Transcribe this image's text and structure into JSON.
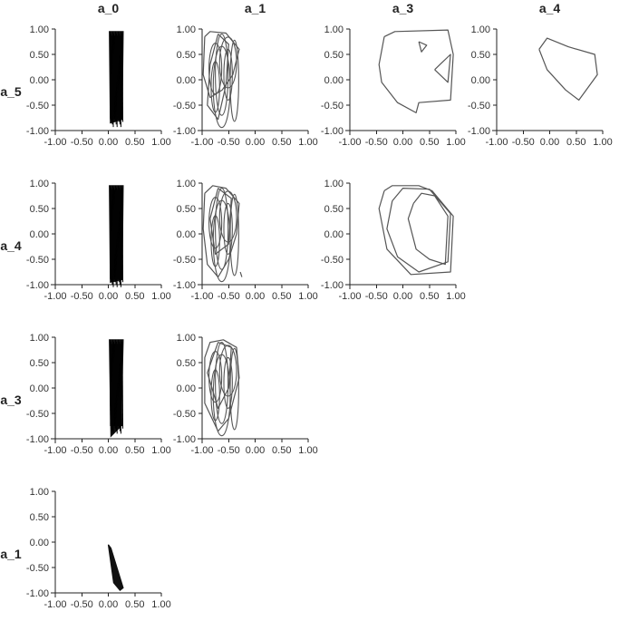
{
  "chart_data": {
    "type": "scatter",
    "col_headers": [
      "a_0",
      "a_1",
      "a_3",
      "a_4"
    ],
    "row_headers": [
      "a_5",
      "a_4",
      "a_3",
      "a_1"
    ],
    "xlim": [
      -1.0,
      1.0
    ],
    "ylim": [
      -1.0,
      1.0
    ],
    "x_ticks": [
      "-1.00",
      "-0.50",
      "0.00",
      "0.50",
      "1.00"
    ],
    "y_ticks": [
      "1.00",
      "0.50",
      "0.00",
      "-0.50",
      "-1.00"
    ],
    "grid": false,
    "line_color": "#555555",
    "dense_color": "#111111",
    "panels": [
      {
        "row": 0,
        "col": 0,
        "x_label": "a_0",
        "y_label": "a_5",
        "style": "dense",
        "series": [
          [
            [
              0.02,
              0.95
            ],
            [
              0.28,
              0.95
            ],
            [
              0.26,
              -0.78
            ],
            [
              0.04,
              -0.85
            ],
            [
              0.02,
              0.95
            ]
          ]
        ]
      },
      {
        "row": 0,
        "col": 1,
        "x_label": "a_1",
        "y_label": "a_5",
        "style": "tangle",
        "series": [
          [
            [
              -0.95,
              0.85
            ],
            [
              -0.85,
              0.95
            ],
            [
              -0.55,
              0.92
            ],
            [
              -0.3,
              0.6
            ],
            [
              -0.42,
              0.1
            ],
            [
              -0.62,
              -0.2
            ],
            [
              -0.85,
              -0.35
            ],
            [
              -0.98,
              0.1
            ],
            [
              -0.95,
              0.85
            ]
          ],
          [
            [
              -0.7,
              0.9
            ],
            [
              -0.5,
              0.7
            ],
            [
              -0.55,
              -0.1
            ],
            [
              -0.7,
              -0.78
            ],
            [
              -0.9,
              -0.5
            ],
            [
              -0.85,
              0.3
            ],
            [
              -0.7,
              0.9
            ]
          ]
        ]
      },
      {
        "row": 0,
        "col": 2,
        "x_label": "a_3",
        "y_label": "a_5",
        "series": [
          [
            [
              -0.35,
              0.85
            ],
            [
              -0.15,
              0.95
            ],
            [
              0.85,
              0.98
            ],
            [
              0.95,
              0.5
            ],
            [
              0.9,
              -0.4
            ],
            [
              0.3,
              -0.45
            ],
            [
              0.25,
              -0.65
            ],
            [
              -0.1,
              -0.45
            ],
            [
              -0.4,
              -0.05
            ],
            [
              -0.45,
              0.3
            ],
            [
              -0.35,
              0.85
            ]
          ],
          [
            [
              0.3,
              0.75
            ],
            [
              0.45,
              0.68
            ],
            [
              0.35,
              0.55
            ],
            [
              0.3,
              0.75
            ]
          ],
          [
            [
              0.6,
              0.2
            ],
            [
              0.85,
              -0.05
            ],
            [
              0.9,
              0.5
            ],
            [
              0.7,
              0.3
            ],
            [
              0.6,
              0.2
            ]
          ]
        ]
      },
      {
        "row": 0,
        "col": 3,
        "x_label": "a_4",
        "y_label": "a_5",
        "series": [
          [
            [
              -0.2,
              0.6
            ],
            [
              -0.05,
              0.82
            ],
            [
              0.35,
              0.65
            ],
            [
              0.85,
              0.5
            ],
            [
              0.9,
              0.1
            ],
            [
              0.55,
              -0.4
            ],
            [
              0.3,
              -0.2
            ],
            [
              -0.05,
              0.2
            ],
            [
              -0.2,
              0.6
            ]
          ]
        ]
      },
      {
        "row": 1,
        "col": 0,
        "x_label": "a_0",
        "y_label": "a_4",
        "style": "dense",
        "series": [
          [
            [
              0.02,
              0.95
            ],
            [
              0.28,
              0.95
            ],
            [
              0.26,
              -0.9
            ],
            [
              0.04,
              -0.95
            ],
            [
              0.02,
              0.95
            ]
          ]
        ]
      },
      {
        "row": 1,
        "col": 1,
        "x_label": "a_1",
        "y_label": "a_4",
        "style": "tangle",
        "series": [
          [
            [
              -0.95,
              0.8
            ],
            [
              -0.8,
              0.95
            ],
            [
              -0.55,
              0.9
            ],
            [
              -0.3,
              0.6
            ],
            [
              -0.35,
              0.0
            ],
            [
              -0.5,
              -0.5
            ],
            [
              -0.7,
              -0.85
            ],
            [
              -0.9,
              -0.6
            ],
            [
              -0.98,
              0.1
            ],
            [
              -0.95,
              0.8
            ]
          ],
          [
            [
              -0.7,
              0.9
            ],
            [
              -0.45,
              0.7
            ],
            [
              -0.5,
              -0.2
            ],
            [
              -0.75,
              -0.4
            ],
            [
              -0.85,
              0.3
            ],
            [
              -0.7,
              0.9
            ]
          ],
          [
            [
              -0.28,
              -0.75
            ],
            [
              -0.25,
              -0.85
            ]
          ]
        ]
      },
      {
        "row": 1,
        "col": 2,
        "x_label": "a_3",
        "y_label": "a_4",
        "series": [
          [
            [
              -0.35,
              0.85
            ],
            [
              -0.2,
              0.95
            ],
            [
              0.3,
              0.95
            ],
            [
              0.55,
              0.85
            ],
            [
              0.95,
              0.35
            ],
            [
              0.9,
              -0.75
            ],
            [
              0.15,
              -0.8
            ],
            [
              -0.3,
              -0.3
            ],
            [
              -0.45,
              0.5
            ],
            [
              -0.35,
              0.85
            ]
          ],
          [
            [
              -0.2,
              0.65
            ],
            [
              0.0,
              0.9
            ],
            [
              0.5,
              0.88
            ],
            [
              0.9,
              0.4
            ],
            [
              0.85,
              -0.55
            ],
            [
              0.3,
              -0.75
            ],
            [
              -0.1,
              -0.45
            ],
            [
              -0.3,
              0.1
            ],
            [
              -0.2,
              0.65
            ]
          ],
          [
            [
              0.2,
              0.6
            ],
            [
              0.35,
              0.8
            ],
            [
              0.6,
              0.75
            ],
            [
              0.85,
              0.35
            ],
            [
              0.8,
              -0.6
            ],
            [
              0.5,
              -0.5
            ],
            [
              0.25,
              -0.3
            ],
            [
              0.1,
              0.3
            ],
            [
              0.2,
              0.6
            ]
          ]
        ]
      },
      {
        "row": 2,
        "col": 0,
        "x_label": "a_0",
        "y_label": "a_3",
        "style": "dense",
        "series": [
          [
            [
              0.02,
              0.95
            ],
            [
              0.28,
              0.95
            ],
            [
              0.24,
              -0.75
            ],
            [
              0.05,
              -0.95
            ],
            [
              0.02,
              0.95
            ]
          ]
        ]
      },
      {
        "row": 2,
        "col": 1,
        "x_label": "a_1",
        "y_label": "a_3",
        "style": "tangle",
        "series": [
          [
            [
              -0.95,
              0.6
            ],
            [
              -0.85,
              0.9
            ],
            [
              -0.6,
              0.95
            ],
            [
              -0.35,
              0.8
            ],
            [
              -0.3,
              0.2
            ],
            [
              -0.5,
              -0.6
            ],
            [
              -0.7,
              -0.85
            ],
            [
              -0.95,
              -0.3
            ],
            [
              -0.95,
              0.6
            ]
          ],
          [
            [
              -0.7,
              0.9
            ],
            [
              -0.45,
              0.8
            ],
            [
              -0.5,
              0.0
            ],
            [
              -0.7,
              -0.4
            ],
            [
              -0.9,
              0.3
            ],
            [
              -0.7,
              0.9
            ]
          ]
        ]
      },
      {
        "row": 3,
        "col": 0,
        "x_label": "a_0",
        "y_label": "a_1",
        "style": "blob",
        "series": [
          [
            [
              0.0,
              -0.05
            ],
            [
              0.05,
              -0.12
            ],
            [
              0.28,
              -0.9
            ],
            [
              0.22,
              -0.95
            ],
            [
              0.1,
              -0.8
            ],
            [
              0.0,
              -0.05
            ]
          ]
        ]
      }
    ]
  }
}
